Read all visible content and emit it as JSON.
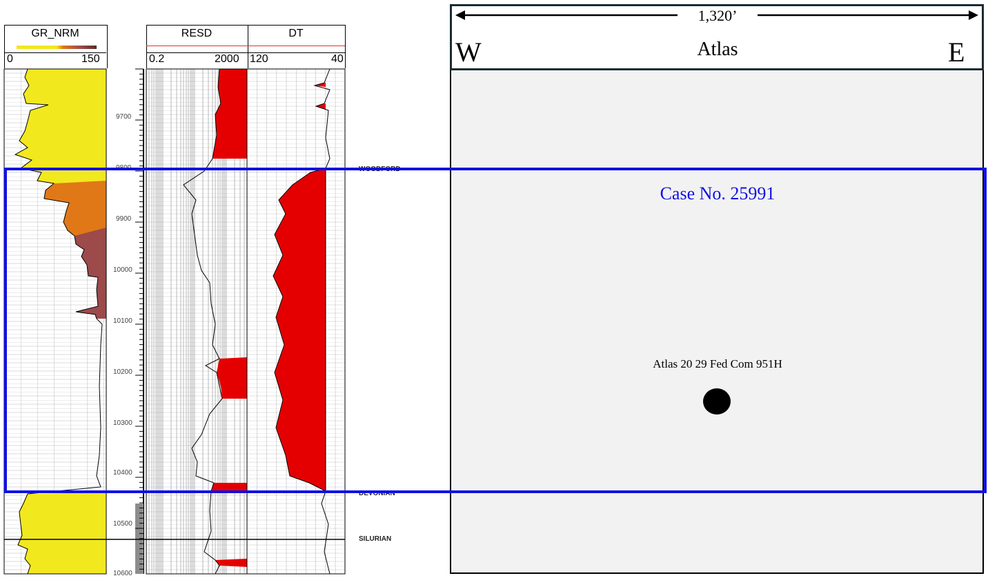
{
  "log": {
    "gr_track": {
      "name": "GR_NRM",
      "scale_left": "0",
      "scale_right": "150"
    },
    "resd_track": {
      "name": "RESD",
      "scale_left": "0.2",
      "scale_right": "2000"
    },
    "dt_track": {
      "name": "DT",
      "scale_left": "120",
      "scale_right": "40"
    },
    "depth_labels": [
      "9700",
      "9800",
      "9900",
      "10000",
      "10100",
      "10200",
      "10300",
      "10400",
      "10500",
      "10600"
    ],
    "formation_tops": [
      "WOODFORD",
      "DEVONIAN",
      "SILURIAN"
    ],
    "colors": {
      "gr_fill_low": "#f2e81e",
      "gr_fill_mid": "#e07818",
      "gr_fill_high": "#9c4a4a",
      "resistivity_fill": "#e40000",
      "sonic_fill": "#e40000",
      "case_box": "#1010e6"
    }
  },
  "plat": {
    "distance": "1,320’",
    "west": "W",
    "east": "E",
    "unit_name": "Atlas",
    "case_label": "Case No. 25991",
    "well_name": "Atlas 20 29 Fed Com 951H",
    "colors": {
      "panel_bg": "#f2f2f2",
      "header_border": "#1c2b33",
      "well_dot": "#000000"
    }
  }
}
